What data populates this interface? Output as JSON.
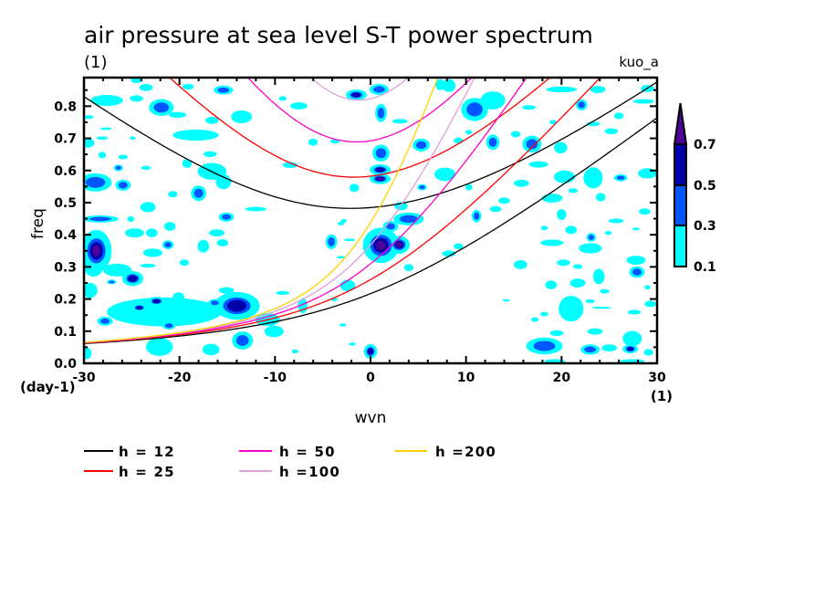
{
  "chart_data": {
    "type": "heatmap",
    "title": "air pressure at sea level S-T power spectrum",
    "subtitle_left": "(1)",
    "subtitle_right": "kuo_a",
    "xlabel": "wvn",
    "xunits": "(1)",
    "ylabel": "freq",
    "yunits": "(day-1)",
    "xlim": [
      -30,
      30
    ],
    "ylim": [
      0,
      0.889
    ],
    "grid": false,
    "x_minor_step": 2,
    "y_minor_step": 0.05,
    "x_ticks": [
      {
        "value": -30,
        "label": "-30"
      },
      {
        "value": -20,
        "label": "-20"
      },
      {
        "value": -10,
        "label": "-10"
      },
      {
        "value": 0,
        "label": "0"
      },
      {
        "value": 10,
        "label": "10"
      },
      {
        "value": 20,
        "label": "20"
      },
      {
        "value": 30,
        "label": "30"
      }
    ],
    "y_ticks": [
      {
        "value": 0.0,
        "label": "0.0"
      },
      {
        "value": 0.1,
        "label": "0.1"
      },
      {
        "value": 0.2,
        "label": "0.2"
      },
      {
        "value": 0.3,
        "label": "0.3"
      },
      {
        "value": 0.4,
        "label": "0.4"
      },
      {
        "value": 0.5,
        "label": "0.5"
      },
      {
        "value": 0.6,
        "label": "0.6"
      },
      {
        "value": 0.7,
        "label": "0.7"
      },
      {
        "value": 0.8,
        "label": "0.8"
      }
    ],
    "colorbar": {
      "levels": [
        0.1,
        0.3,
        0.5,
        0.7
      ],
      "labels": [
        "0.1",
        "0.3",
        "0.5",
        "0.7"
      ],
      "colors": [
        "#00FFFF",
        "#0055FF",
        "#0000A8",
        "#50009B"
      ],
      "extend": "max",
      "placement": "right"
    },
    "legend_placement": "bottom",
    "series": [
      {
        "label": "h = 12",
        "equivalent_depth_m": 12,
        "color": "#000000"
      },
      {
        "label": "h = 25",
        "equivalent_depth_m": 25,
        "color": "#FF0000"
      },
      {
        "label": "h = 50",
        "equivalent_depth_m": 50,
        "color": "#FF00C8"
      },
      {
        "label": "h =100",
        "equivalent_depth_m": 100,
        "color": "#DDA0DD"
      },
      {
        "label": "h =200",
        "equivalent_depth_m": 200,
        "color": "#FFD000"
      }
    ],
    "field": {
      "fields": [
        "wvn",
        "freq",
        "wvn_spread",
        "freq_spread",
        "peak_power"
      ],
      "patches": [
        [
          -27.6,
          0.818,
          1.7,
          0.017,
          0.2
        ],
        [
          -24.5,
          0.881,
          0.6,
          0.009,
          0.2
        ],
        [
          -24.5,
          0.824,
          0.7,
          0.01,
          0.2
        ],
        [
          -23.5,
          0.858,
          0.7,
          0.011,
          0.2
        ],
        [
          -21.9,
          0.796,
          1.3,
          0.026,
          0.4
        ],
        [
          -20.2,
          0.773,
          0.9,
          0.009,
          0.2
        ],
        [
          -18.3,
          0.71,
          2.4,
          0.017,
          0.2
        ],
        [
          -15.4,
          0.85,
          1.0,
          0.014,
          0.4
        ],
        [
          -13.5,
          0.767,
          1.1,
          0.02,
          0.2
        ],
        [
          -19.1,
          0.861,
          0.6,
          0.009,
          0.2
        ],
        [
          -16.6,
          0.756,
          0.7,
          0.011,
          0.2
        ],
        [
          -7.5,
          0.801,
          0.9,
          0.011,
          0.2
        ],
        [
          -9.2,
          0.824,
          0.4,
          0.007,
          0.2
        ],
        [
          -6.0,
          0.688,
          0.5,
          0.011,
          0.2
        ],
        [
          -3.7,
          0.691,
          0.5,
          0.007,
          0.2
        ],
        [
          -8.4,
          0.617,
          0.8,
          0.009,
          0.2
        ],
        [
          -16.6,
          0.597,
          1.5,
          0.026,
          0.2
        ],
        [
          -19.2,
          0.622,
          0.5,
          0.014,
          0.2
        ],
        [
          -16.8,
          0.651,
          0.7,
          0.009,
          0.2
        ],
        [
          -15.4,
          0.565,
          0.8,
          0.023,
          0.2
        ],
        [
          -12.0,
          0.48,
          1.1,
          0.007,
          0.2
        ],
        [
          -18.0,
          0.529,
          0.8,
          0.024,
          0.4
        ],
        [
          -23.3,
          0.486,
          0.8,
          0.016,
          0.2
        ],
        [
          -28.8,
          0.563,
          1.7,
          0.028,
          0.4
        ],
        [
          -25.9,
          0.554,
          0.8,
          0.017,
          0.4
        ],
        [
          -29.6,
          0.685,
          0.7,
          0.014,
          0.2
        ],
        [
          -28.1,
          0.648,
          0.4,
          0.01,
          0.2
        ],
        [
          -25.9,
          0.642,
          0.5,
          0.007,
          0.2
        ],
        [
          -26.4,
          0.608,
          0.5,
          0.01,
          0.4
        ],
        [
          -23.5,
          0.608,
          0.5,
          0.006,
          0.2
        ],
        [
          -28.3,
          0.449,
          1.9,
          0.011,
          0.4
        ],
        [
          -15.1,
          0.455,
          0.8,
          0.014,
          0.4
        ],
        [
          -20.7,
          0.526,
          0.5,
          0.01,
          0.2
        ],
        [
          -1.7,
          0.546,
          0.5,
          0.013,
          0.2
        ],
        [
          -2.8,
          0.443,
          0.3,
          0.006,
          0.2
        ],
        [
          -1.5,
          0.835,
          1.1,
          0.017,
          0.6
        ],
        [
          0.9,
          0.852,
          1.0,
          0.017,
          0.4
        ],
        [
          1.1,
          0.779,
          0.6,
          0.028,
          0.4
        ],
        [
          1.1,
          0.654,
          0.9,
          0.026,
          0.4
        ],
        [
          1.0,
          0.602,
          1.1,
          0.017,
          0.6
        ],
        [
          1.0,
          0.574,
          1.1,
          0.016,
          0.8
        ],
        [
          3.1,
          0.753,
          0.8,
          0.007,
          0.2
        ],
        [
          4.0,
          0.449,
          1.6,
          0.02,
          0.4
        ],
        [
          2.1,
          0.426,
          0.8,
          0.017,
          0.4
        ],
        [
          1.1,
          0.367,
          1.9,
          0.055,
          0.8
        ],
        [
          3.0,
          0.369,
          1.1,
          0.028,
          0.8
        ],
        [
          8.2,
          0.864,
          0.7,
          0.02,
          0.2
        ],
        [
          10.9,
          0.79,
          1.4,
          0.036,
          0.4
        ],
        [
          12.8,
          0.818,
          1.3,
          0.028,
          0.2
        ],
        [
          7.3,
          0.867,
          0.5,
          0.017,
          0.2
        ],
        [
          20.0,
          0.852,
          1.6,
          0.009,
          0.2
        ],
        [
          23.8,
          0.852,
          0.8,
          0.011,
          0.2
        ],
        [
          22.1,
          0.804,
          0.6,
          0.017,
          0.4
        ],
        [
          16.6,
          0.796,
          0.7,
          0.007,
          0.2
        ],
        [
          29.0,
          0.855,
          0.7,
          0.011,
          0.2
        ],
        [
          28.6,
          0.815,
          1.1,
          0.007,
          0.2
        ],
        [
          26.0,
          0.77,
          0.5,
          0.01,
          0.2
        ],
        [
          23.3,
          0.745,
          0.7,
          0.007,
          0.2
        ],
        [
          25.2,
          0.722,
          0.7,
          0.009,
          0.2
        ],
        [
          19.1,
          0.75,
          0.35,
          0.007,
          0.2
        ],
        [
          15.2,
          0.713,
          0.5,
          0.01,
          0.2
        ],
        [
          10.3,
          0.719,
          0.35,
          0.007,
          0.2
        ],
        [
          12.8,
          0.688,
          0.7,
          0.024,
          0.4
        ],
        [
          16.9,
          0.682,
          1.0,
          0.026,
          0.4
        ],
        [
          19.9,
          0.671,
          0.7,
          0.018,
          0.2
        ],
        [
          9.2,
          0.693,
          0.5,
          0.009,
          0.2
        ],
        [
          5.3,
          0.679,
          0.9,
          0.02,
          0.4
        ],
        [
          17.6,
          0.619,
          1.0,
          0.01,
          0.2
        ],
        [
          7.8,
          0.588,
          1.1,
          0.021,
          0.2
        ],
        [
          5.4,
          0.548,
          0.5,
          0.01,
          0.4
        ],
        [
          10.3,
          0.548,
          0.35,
          0.01,
          0.2
        ],
        [
          15.8,
          0.56,
          0.8,
          0.011,
          0.2
        ],
        [
          20.3,
          0.58,
          1.1,
          0.02,
          0.2
        ],
        [
          23.3,
          0.577,
          1.0,
          0.033,
          0.2
        ],
        [
          26.2,
          0.577,
          0.7,
          0.011,
          0.4
        ],
        [
          29.0,
          0.591,
          1.0,
          0.016,
          0.2
        ],
        [
          21.2,
          0.537,
          0.5,
          0.007,
          0.2
        ],
        [
          24.1,
          0.517,
          0.5,
          0.013,
          0.2
        ],
        [
          19.0,
          0.514,
          1.1,
          0.014,
          0.2
        ],
        [
          20.0,
          0.463,
          0.5,
          0.017,
          0.2
        ],
        [
          13.1,
          0.48,
          0.6,
          0.009,
          0.2
        ],
        [
          14.0,
          0.506,
          0.6,
          0.01,
          0.2
        ],
        [
          3.2,
          0.489,
          0.7,
          0.013,
          0.2
        ],
        [
          11.1,
          0.458,
          0.5,
          0.02,
          0.4
        ],
        [
          28.7,
          0.472,
          0.6,
          0.01,
          0.2
        ],
        [
          25.7,
          0.443,
          0.8,
          0.007,
          0.2
        ],
        [
          -28.7,
          0.35,
          1.6,
          0.065,
          0.8
        ],
        [
          -24.9,
          0.264,
          1.1,
          0.023,
          0.6
        ],
        [
          -27.1,
          0.253,
          0.5,
          0.007,
          0.4
        ],
        [
          -24.7,
          0.406,
          1.0,
          0.014,
          0.2
        ],
        [
          -22.9,
          0.406,
          0.6,
          0.014,
          0.2
        ],
        [
          -21.0,
          0.426,
          0.6,
          0.014,
          0.2
        ],
        [
          -25.1,
          0.449,
          0.35,
          0.009,
          0.2
        ],
        [
          -22.8,
          0.344,
          1.0,
          0.013,
          0.2
        ],
        [
          -21.2,
          0.369,
          0.6,
          0.014,
          0.4
        ],
        [
          -23.3,
          0.304,
          0.8,
          0.006,
          0.2
        ],
        [
          -19.5,
          0.313,
          0.5,
          0.01,
          0.2
        ],
        [
          -17.5,
          0.364,
          0.6,
          0.02,
          0.2
        ],
        [
          -15.5,
          0.375,
          0.6,
          0.011,
          0.2
        ],
        [
          -29.4,
          0.227,
          0.8,
          0.024,
          0.2
        ],
        [
          -21.6,
          0.16,
          6.0,
          0.045,
          0.2
        ],
        [
          -22.4,
          0.193,
          0.9,
          0.014,
          0.6
        ],
        [
          -24.2,
          0.173,
          0.8,
          0.012,
          0.6
        ],
        [
          -21.1,
          0.117,
          0.7,
          0.012,
          0.4
        ],
        [
          -16.3,
          0.188,
          0.7,
          0.012,
          0.4
        ],
        [
          -22.1,
          0.051,
          1.4,
          0.028,
          0.2
        ],
        [
          -16.7,
          0.043,
          0.9,
          0.018,
          0.2
        ],
        [
          -29.7,
          0.031,
          0.5,
          0.018,
          0.2
        ],
        [
          -20.1,
          0.207,
          0.6,
          0.014,
          0.2
        ],
        [
          -27.8,
          0.131,
          0.8,
          0.014,
          0.4
        ],
        [
          -19.2,
          0.159,
          0.8,
          0.014,
          0.2
        ],
        [
          -16.1,
          0.406,
          0.8,
          0.011,
          0.2
        ],
        [
          -14.0,
          0.179,
          2.4,
          0.043,
          0.6
        ],
        [
          -15.1,
          0.227,
          0.8,
          0.01,
          0.2
        ],
        [
          -9.2,
          0.219,
          0.7,
          0.006,
          0.2
        ],
        [
          -7.1,
          0.179,
          0.5,
          0.023,
          0.2
        ],
        [
          -10.8,
          0.136,
          1.3,
          0.02,
          0.2
        ],
        [
          -10.1,
          0.099,
          1.0,
          0.018,
          0.2
        ],
        [
          -13.4,
          0.071,
          1.1,
          0.028,
          0.4
        ],
        [
          -7.9,
          0.037,
          0.35,
          0.006,
          0.2
        ],
        [
          -4.1,
          0.378,
          0.6,
          0.023,
          0.4
        ],
        [
          -3.1,
          0.435,
          0.35,
          0.006,
          0.2
        ],
        [
          -2.2,
          0.384,
          0.6,
          0.004,
          0.2
        ],
        [
          -2.4,
          0.242,
          0.8,
          0.018,
          0.2
        ],
        [
          -3.8,
          0.199,
          0.35,
          0.006,
          0.2
        ],
        [
          -2.9,
          0.119,
          0.35,
          0.005,
          0.2
        ],
        [
          -1.9,
          0.06,
          0.35,
          0.005,
          0.2
        ],
        [
          0.0,
          0.037,
          0.7,
          0.023,
          0.6
        ],
        [
          -3.1,
          0.33,
          0.4,
          0.004,
          0.2
        ],
        [
          8.2,
          0.341,
          0.7,
          0.01,
          0.2
        ],
        [
          4.0,
          0.298,
          0.5,
          0.011,
          0.2
        ],
        [
          9.2,
          0.364,
          0.5,
          0.009,
          0.2
        ],
        [
          18.2,
          0.421,
          0.35,
          0.007,
          0.2
        ],
        [
          21.0,
          0.415,
          0.6,
          0.013,
          0.2
        ],
        [
          23.1,
          0.392,
          0.5,
          0.014,
          0.4
        ],
        [
          24.9,
          0.406,
          0.35,
          0.006,
          0.2
        ],
        [
          27.8,
          0.418,
          0.4,
          0.004,
          0.2
        ],
        [
          19.0,
          0.375,
          1.2,
          0.01,
          0.2
        ],
        [
          23.0,
          0.358,
          1.2,
          0.016,
          0.2
        ],
        [
          27.8,
          0.321,
          1.0,
          0.014,
          0.2
        ],
        [
          27.9,
          0.284,
          0.8,
          0.018,
          0.4
        ],
        [
          15.7,
          0.307,
          0.7,
          0.014,
          0.2
        ],
        [
          20.2,
          0.313,
          0.7,
          0.01,
          0.2
        ],
        [
          21.7,
          0.301,
          0.5,
          0.007,
          0.2
        ],
        [
          23.9,
          0.27,
          0.6,
          0.024,
          0.2
        ],
        [
          18.9,
          0.244,
          0.6,
          0.014,
          0.2
        ],
        [
          21.7,
          0.25,
          0.8,
          0.014,
          0.2
        ],
        [
          24.5,
          0.224,
          0.5,
          0.007,
          0.2
        ],
        [
          29.0,
          0.236,
          0.3,
          0.007,
          0.2
        ],
        [
          21.0,
          0.17,
          1.3,
          0.04,
          0.2
        ],
        [
          23.0,
          0.193,
          0.5,
          0.006,
          0.2
        ],
        [
          24.2,
          0.173,
          1.0,
          0.003,
          0.2
        ],
        [
          18.2,
          0.153,
          0.4,
          0.007,
          0.2
        ],
        [
          17.2,
          0.136,
          0.4,
          0.007,
          0.2
        ],
        [
          27.6,
          0.159,
          0.7,
          0.007,
          0.2
        ],
        [
          29.3,
          0.185,
          0.6,
          0.01,
          0.2
        ],
        [
          19.5,
          0.094,
          0.7,
          0.009,
          0.2
        ],
        [
          23.5,
          0.099,
          0.8,
          0.01,
          0.2
        ],
        [
          27.4,
          0.077,
          1.0,
          0.024,
          0.2
        ],
        [
          18.2,
          0.054,
          1.9,
          0.026,
          0.4
        ],
        [
          23.0,
          0.043,
          1.0,
          0.016,
          0.4
        ],
        [
          25.0,
          0.048,
          0.8,
          0.011,
          0.2
        ],
        [
          27.2,
          0.045,
          0.8,
          0.014,
          0.6
        ],
        [
          29.1,
          0.034,
          0.5,
          0.01,
          0.2
        ],
        [
          19.3,
          0.006,
          1.1,
          0.007,
          0.2
        ],
        [
          27.4,
          0.006,
          1.3,
          0.007,
          0.2
        ],
        [
          14.2,
          0.196,
          0.4,
          0.003,
          0.2
        ],
        [
          -29.5,
          0.766,
          0.5,
          0.006,
          0.2
        ],
        [
          -27.7,
          0.73,
          0.6,
          0.004,
          0.2
        ],
        [
          -28.1,
          0.701,
          0.6,
          0.005,
          0.2
        ],
        [
          -24.9,
          0.701,
          0.3,
          0.005,
          0.2
        ],
        [
          -29.0,
          0.3,
          1.0,
          0.03,
          0.2
        ],
        [
          -26.5,
          0.29,
          1.5,
          0.02,
          0.2
        ]
      ]
    }
  }
}
